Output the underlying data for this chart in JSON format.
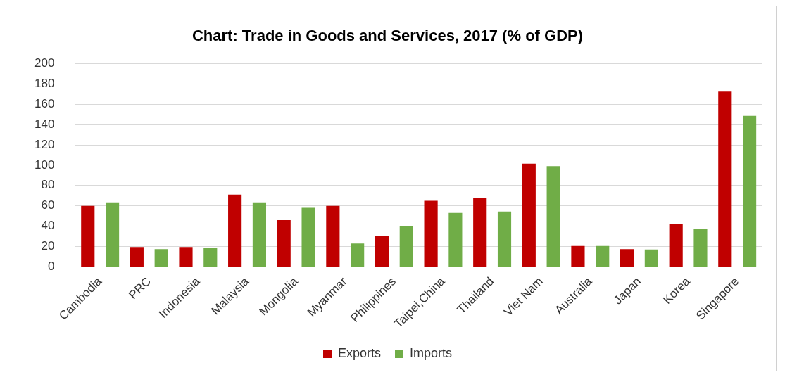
{
  "chart_data": {
    "type": "bar",
    "title": "Chart: Trade in Goods and Services, 2017 (% of GDP)",
    "categories": [
      "Cambodia",
      "PRC",
      "Indonesia",
      "Malaysia",
      "Mongolia",
      "Myanmar",
      "Philippines",
      "Taipei,China",
      "Thailand",
      "Viet Nam",
      "Australia",
      "Japan",
      "Korea",
      "Singapore"
    ],
    "series": [
      {
        "name": "Exports",
        "color": "#c00000",
        "values": [
          60,
          19.5,
          19.5,
          71,
          46,
          60,
          30.5,
          65,
          67.5,
          101.5,
          20.5,
          17.5,
          42.5,
          172.5
        ]
      },
      {
        "name": "Imports",
        "color": "#70ad47",
        "values": [
          63.5,
          17.5,
          18.5,
          63.5,
          58,
          23,
          40.5,
          53,
          54.5,
          99,
          20.5,
          17,
          37,
          148.5
        ]
      }
    ],
    "ylim": [
      0,
      200
    ],
    "yticks": [
      0,
      20,
      40,
      60,
      80,
      100,
      120,
      140,
      160,
      180,
      200
    ],
    "grid": "y",
    "legend": "bottom"
  }
}
